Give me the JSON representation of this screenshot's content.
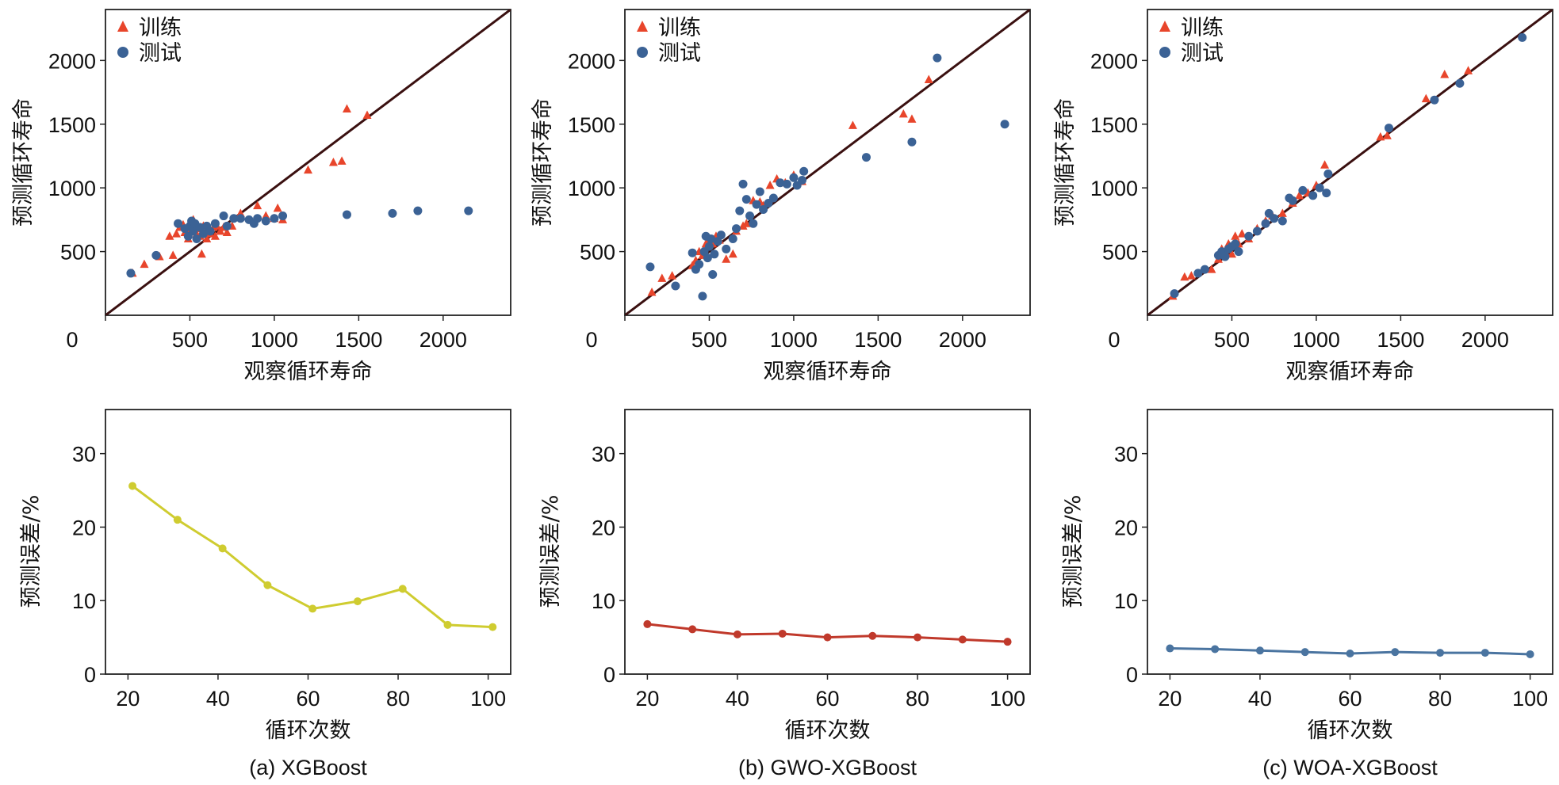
{
  "chart_data": [
    {
      "type": "scatter",
      "xlabel": "观察循环寿命",
      "ylabel": "预测循环寿命",
      "xticks": [
        0,
        500,
        1000,
        1500,
        2000
      ],
      "yticks": [
        500,
        1000,
        1500,
        2000
      ],
      "xlim": [
        0,
        2400
      ],
      "ylim": [
        0,
        2400
      ],
      "legend": [
        "训练",
        "测试"
      ],
      "reference_line": "y = x",
      "series": [
        {
          "name": "训练",
          "marker": "triangle",
          "color": "#e8452b",
          "points": [
            [
              160,
              330
            ],
            [
              230,
              400
            ],
            [
              320,
              460
            ],
            [
              380,
              620
            ],
            [
              400,
              470
            ],
            [
              420,
              640
            ],
            [
              440,
              690
            ],
            [
              460,
              710
            ],
            [
              470,
              650
            ],
            [
              490,
              600
            ],
            [
              500,
              660
            ],
            [
              510,
              700
            ],
            [
              520,
              750
            ],
            [
              540,
              640
            ],
            [
              550,
              680
            ],
            [
              560,
              620
            ],
            [
              570,
              480
            ],
            [
              580,
              700
            ],
            [
              590,
              650
            ],
            [
              600,
              600
            ],
            [
              610,
              670
            ],
            [
              620,
              640
            ],
            [
              640,
              690
            ],
            [
              650,
              620
            ],
            [
              660,
              700
            ],
            [
              680,
              660
            ],
            [
              700,
              690
            ],
            [
              720,
              650
            ],
            [
              750,
              700
            ],
            [
              800,
              800
            ],
            [
              900,
              860
            ],
            [
              950,
              780
            ],
            [
              1000,
              760
            ],
            [
              1020,
              840
            ],
            [
              1050,
              750
            ],
            [
              1200,
              1140
            ],
            [
              1350,
              1200
            ],
            [
              1400,
              1210
            ],
            [
              1430,
              1620
            ],
            [
              1550,
              1570
            ]
          ]
        },
        {
          "name": "测试",
          "marker": "circle",
          "color": "#3b6295",
          "points": [
            [
              150,
              330
            ],
            [
              300,
              470
            ],
            [
              430,
              720
            ],
            [
              470,
              680
            ],
            [
              490,
              620
            ],
            [
              500,
              700
            ],
            [
              510,
              740
            ],
            [
              520,
              660
            ],
            [
              530,
              720
            ],
            [
              540,
              600
            ],
            [
              560,
              690
            ],
            [
              580,
              640
            ],
            [
              600,
              700
            ],
            [
              620,
              660
            ],
            [
              650,
              720
            ],
            [
              700,
              780
            ],
            [
              720,
              700
            ],
            [
              760,
              760
            ],
            [
              800,
              760
            ],
            [
              850,
              750
            ],
            [
              880,
              720
            ],
            [
              900,
              760
            ],
            [
              950,
              740
            ],
            [
              1000,
              760
            ],
            [
              1050,
              780
            ],
            [
              1430,
              790
            ],
            [
              1700,
              800
            ],
            [
              1850,
              820
            ],
            [
              2150,
              820
            ]
          ]
        }
      ]
    },
    {
      "type": "scatter",
      "xlabel": "观察循环寿命",
      "ylabel": "预测循环寿命",
      "xticks": [
        0,
        500,
        1000,
        1500,
        2000
      ],
      "yticks": [
        500,
        1000,
        1500,
        2000
      ],
      "xlim": [
        0,
        2400
      ],
      "ylim": [
        0,
        2400
      ],
      "legend": [
        "训练",
        "测试"
      ],
      "reference_line": "y = x",
      "series": [
        {
          "name": "训练",
          "marker": "triangle",
          "color": "#e8452b",
          "points": [
            [
              160,
              180
            ],
            [
              220,
              290
            ],
            [
              280,
              310
            ],
            [
              400,
              390
            ],
            [
              420,
              430
            ],
            [
              440,
              500
            ],
            [
              460,
              470
            ],
            [
              480,
              560
            ],
            [
              500,
              600
            ],
            [
              520,
              560
            ],
            [
              540,
              620
            ],
            [
              560,
              590
            ],
            [
              600,
              440
            ],
            [
              640,
              480
            ],
            [
              660,
              660
            ],
            [
              700,
              700
            ],
            [
              720,
              720
            ],
            [
              760,
              900
            ],
            [
              800,
              890
            ],
            [
              820,
              860
            ],
            [
              860,
              1020
            ],
            [
              900,
              1070
            ],
            [
              950,
              1040
            ],
            [
              1000,
              1100
            ],
            [
              1050,
              1050
            ],
            [
              1350,
              1490
            ],
            [
              1650,
              1580
            ],
            [
              1700,
              1540
            ],
            [
              1800,
              1850
            ]
          ]
        },
        {
          "name": "测试",
          "marker": "circle",
          "color": "#3b6295",
          "points": [
            [
              150,
              380
            ],
            [
              300,
              230
            ],
            [
              400,
              490
            ],
            [
              420,
              360
            ],
            [
              440,
              400
            ],
            [
              460,
              150
            ],
            [
              470,
              500
            ],
            [
              480,
              620
            ],
            [
              490,
              450
            ],
            [
              500,
              540
            ],
            [
              510,
              600
            ],
            [
              520,
              320
            ],
            [
              530,
              480
            ],
            [
              550,
              580
            ],
            [
              570,
              630
            ],
            [
              600,
              520
            ],
            [
              640,
              600
            ],
            [
              660,
              680
            ],
            [
              680,
              820
            ],
            [
              700,
              1030
            ],
            [
              720,
              910
            ],
            [
              740,
              780
            ],
            [
              760,
              720
            ],
            [
              780,
              870
            ],
            [
              800,
              970
            ],
            [
              820,
              830
            ],
            [
              850,
              880
            ],
            [
              880,
              920
            ],
            [
              920,
              1040
            ],
            [
              960,
              1030
            ],
            [
              1000,
              1080
            ],
            [
              1020,
              1020
            ],
            [
              1050,
              1060
            ],
            [
              1060,
              1130
            ],
            [
              1430,
              1240
            ],
            [
              1700,
              1360
            ],
            [
              1850,
              2020
            ],
            [
              2250,
              1500
            ]
          ]
        }
      ]
    },
    {
      "type": "scatter",
      "xlabel": "观察循环寿命",
      "ylabel": "预测循环寿命",
      "xticks": [
        0,
        500,
        1000,
        1500,
        2000
      ],
      "yticks": [
        500,
        1000,
        1500,
        2000
      ],
      "xlim": [
        0,
        2400
      ],
      "ylim": [
        0,
        2400
      ],
      "legend": [
        "训练",
        "测试"
      ],
      "reference_line": "y = x",
      "series": [
        {
          "name": "训练",
          "marker": "triangle",
          "color": "#e8452b",
          "points": [
            [
              150,
              150
            ],
            [
              220,
              300
            ],
            [
              260,
              310
            ],
            [
              380,
              360
            ],
            [
              420,
              440
            ],
            [
              440,
              520
            ],
            [
              460,
              500
            ],
            [
              480,
              560
            ],
            [
              500,
              480
            ],
            [
              520,
              620
            ],
            [
              540,
              560
            ],
            [
              560,
              640
            ],
            [
              600,
              600
            ],
            [
              650,
              680
            ],
            [
              700,
              740
            ],
            [
              740,
              780
            ],
            [
              800,
              800
            ],
            [
              860,
              880
            ],
            [
              900,
              940
            ],
            [
              950,
              960
            ],
            [
              1000,
              1020
            ],
            [
              1050,
              1180
            ],
            [
              1380,
              1400
            ],
            [
              1420,
              1410
            ],
            [
              1650,
              1700
            ],
            [
              1760,
              1890
            ],
            [
              1900,
              1920
            ]
          ]
        },
        {
          "name": "测试",
          "marker": "circle",
          "color": "#3b6295",
          "points": [
            [
              160,
              170
            ],
            [
              300,
              330
            ],
            [
              340,
              360
            ],
            [
              420,
              470
            ],
            [
              440,
              500
            ],
            [
              460,
              460
            ],
            [
              480,
              520
            ],
            [
              500,
              540
            ],
            [
              520,
              560
            ],
            [
              540,
              500
            ],
            [
              600,
              620
            ],
            [
              650,
              660
            ],
            [
              700,
              720
            ],
            [
              720,
              800
            ],
            [
              750,
              760
            ],
            [
              800,
              740
            ],
            [
              840,
              920
            ],
            [
              860,
              900
            ],
            [
              920,
              980
            ],
            [
              980,
              940
            ],
            [
              1020,
              1000
            ],
            [
              1060,
              960
            ],
            [
              1070,
              1110
            ],
            [
              1430,
              1470
            ],
            [
              1700,
              1690
            ],
            [
              1850,
              1820
            ],
            [
              2220,
              2180
            ]
          ]
        }
      ]
    },
    {
      "type": "line",
      "caption": "(a) XGBoost",
      "xlabel": "循环次数",
      "ylabel": "预测误差/%",
      "xticks": [
        20,
        40,
        60,
        80,
        100
      ],
      "yticks": [
        0,
        10,
        20,
        30
      ],
      "xlim": [
        15,
        105
      ],
      "ylim": [
        0,
        36
      ],
      "color": "#cfcc30",
      "x": [
        21,
        31,
        41,
        51,
        61,
        71,
        81,
        91,
        101
      ],
      "values": [
        25.6,
        21.0,
        17.1,
        12.1,
        8.9,
        9.9,
        11.6,
        6.7,
        6.4
      ]
    },
    {
      "type": "line",
      "caption": "(b) GWO-XGBoost",
      "xlabel": "循环次数",
      "ylabel": "预测误差/%",
      "xticks": [
        20,
        40,
        60,
        80,
        100
      ],
      "yticks": [
        0,
        10,
        20,
        30
      ],
      "xlim": [
        15,
        105
      ],
      "ylim": [
        0,
        36
      ],
      "color": "#c0392b",
      "x": [
        20,
        30,
        40,
        50,
        60,
        70,
        80,
        90,
        100
      ],
      "values": [
        6.8,
        6.1,
        5.4,
        5.5,
        5.0,
        5.2,
        5.0,
        4.7,
        4.4
      ]
    },
    {
      "type": "line",
      "caption": "(c) WOA-XGBoost",
      "xlabel": "循环次数",
      "ylabel": "预测误差/%",
      "xticks": [
        20,
        40,
        60,
        80,
        100
      ],
      "yticks": [
        0,
        10,
        20,
        30
      ],
      "xlim": [
        15,
        105
      ],
      "ylim": [
        0,
        36
      ],
      "color": "#4a74a0",
      "x": [
        20,
        30,
        40,
        50,
        60,
        70,
        80,
        90,
        100
      ],
      "values": [
        3.5,
        3.4,
        3.2,
        3.0,
        2.8,
        3.0,
        2.9,
        2.9,
        2.7
      ]
    }
  ]
}
